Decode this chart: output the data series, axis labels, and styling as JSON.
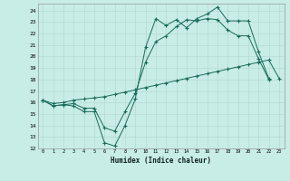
{
  "xlabel": "Humidex (Indice chaleur)",
  "bg_color": "#c8ece6",
  "grid_color": "#b0d8d0",
  "line_color": "#1a6b5a",
  "xlim": [
    -0.5,
    23.5
  ],
  "ylim": [
    12,
    24.6
  ],
  "yticks": [
    12,
    13,
    14,
    15,
    16,
    17,
    18,
    19,
    20,
    21,
    22,
    23,
    24
  ],
  "xticks": [
    0,
    1,
    2,
    3,
    4,
    5,
    6,
    7,
    8,
    9,
    10,
    11,
    12,
    13,
    14,
    15,
    16,
    17,
    18,
    19,
    20,
    21,
    22,
    23
  ],
  "series1_x": [
    0,
    1,
    2,
    3,
    4,
    5,
    6,
    7,
    8,
    9,
    10,
    11,
    12,
    13,
    14,
    15,
    16,
    17,
    18,
    19,
    20,
    21,
    22
  ],
  "series1_y": [
    16.2,
    15.7,
    15.8,
    15.7,
    15.2,
    15.2,
    12.5,
    12.2,
    14.0,
    16.3,
    20.8,
    23.3,
    22.7,
    23.2,
    22.5,
    23.3,
    23.7,
    24.3,
    23.1,
    23.1,
    23.1,
    20.4,
    18.1
  ],
  "series2_x": [
    0,
    1,
    2,
    3,
    4,
    5,
    6,
    7,
    8,
    9,
    10,
    11,
    12,
    13,
    14,
    15,
    16,
    17,
    18,
    19,
    20,
    21,
    22
  ],
  "series2_y": [
    16.2,
    15.7,
    15.8,
    15.9,
    15.5,
    15.5,
    13.8,
    13.5,
    15.2,
    16.8,
    19.5,
    21.3,
    21.8,
    22.6,
    23.2,
    23.1,
    23.3,
    23.2,
    22.3,
    21.8,
    21.8,
    19.8,
    18.0
  ],
  "series3_x": [
    0,
    1,
    2,
    3,
    4,
    5,
    6,
    7,
    8,
    9,
    10,
    11,
    12,
    13,
    14,
    15,
    16,
    17,
    18,
    19,
    20,
    21,
    22,
    23
  ],
  "series3_y": [
    16.2,
    15.9,
    16.0,
    16.2,
    16.3,
    16.4,
    16.5,
    16.7,
    16.9,
    17.1,
    17.3,
    17.5,
    17.7,
    17.9,
    18.1,
    18.3,
    18.5,
    18.7,
    18.9,
    19.1,
    19.3,
    19.5,
    19.7,
    18.1
  ]
}
